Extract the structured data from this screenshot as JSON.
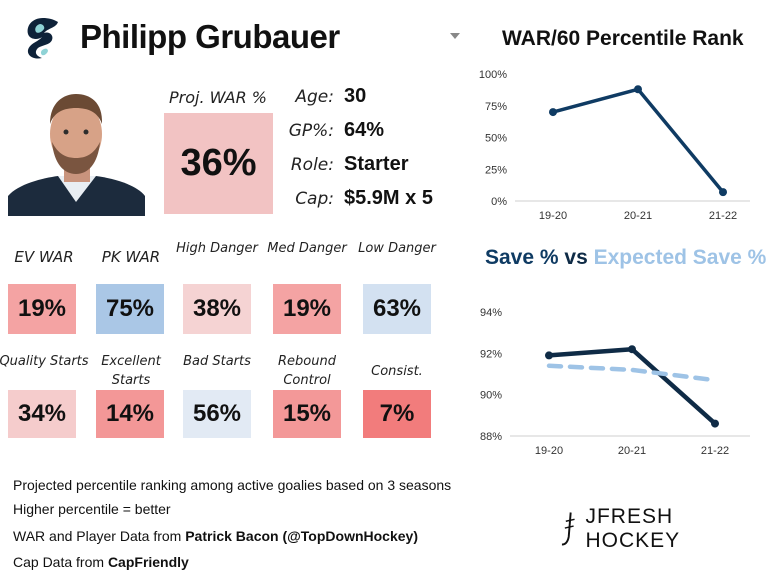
{
  "player": {
    "name": "Philipp Grubauer"
  },
  "proj_war": {
    "label": "Proj. WAR %",
    "value": "36%"
  },
  "info": [
    {
      "label": "Age:",
      "value": "30"
    },
    {
      "label": "GP%:",
      "value": "64%"
    },
    {
      "label": "Role:",
      "value": "Starter"
    },
    {
      "label": "Cap:",
      "value": "$5.9M x 5"
    }
  ],
  "stats_row1": [
    {
      "label": "EV WAR",
      "value": "19%",
      "color": "#f4a3a3"
    },
    {
      "label": "PK WAR",
      "value": "75%",
      "color": "#aac7e6"
    },
    {
      "label": "High Danger",
      "value": "38%",
      "color": "#f5d3d3"
    },
    {
      "label": "Med Danger",
      "value": "19%",
      "color": "#f4a3a3"
    },
    {
      "label": "Low Danger",
      "value": "63%",
      "color": "#d3e1f1"
    }
  ],
  "stats_row2": [
    {
      "label": "Quality Starts",
      "value": "34%",
      "color": "#f5cccc"
    },
    {
      "label": "Excellent Starts",
      "value": "14%",
      "color": "#f39797"
    },
    {
      "label": "Bad Starts",
      "value": "56%",
      "color": "#e2eaf4"
    },
    {
      "label": "Rebound Control",
      "value": "15%",
      "color": "#f39898"
    },
    {
      "label": "Consist.",
      "value": "7%",
      "color": "#f27c7c"
    }
  ],
  "footer": {
    "line1": "Projected percentile ranking among active goalies based on 3 seasons",
    "line2": "Higher percentile = better",
    "line3_prefix": "WAR and Player Data from ",
    "line3_bold": "Patrick Bacon (@TopDownHockey)",
    "line4_prefix": "Cap Data from ",
    "line4_bold": "CapFriendly"
  },
  "brand": "JFRESH HOCKEY",
  "colors": {
    "navy": "#0f3b63",
    "dark": "#0f2b46",
    "light": "#9ec3e6",
    "bar_red": "#f4a3a3"
  },
  "chart_data": [
    {
      "type": "line",
      "title": "WAR/60 Percentile Rank",
      "x": [
        "19-20",
        "20-21",
        "21-22"
      ],
      "series": [
        {
          "values": [
            70,
            88,
            7
          ]
        }
      ],
      "ylim": [
        0,
        100
      ],
      "yticks": [
        "0%",
        "25%",
        "50%",
        "75%",
        "100%"
      ],
      "grid": false
    },
    {
      "type": "line",
      "title_parts": [
        "Save %",
        " vs ",
        "Expected Save %"
      ],
      "x": [
        "19-20",
        "20-21",
        "21-22"
      ],
      "series": [
        {
          "name": "Save %",
          "values": [
            91.9,
            92.2,
            88.6
          ]
        },
        {
          "name": "Expected Save %",
          "values": [
            91.4,
            91.2,
            90.7
          ]
        }
      ],
      "ylim": [
        88,
        94
      ],
      "yticks": [
        "88%",
        "90%",
        "92%",
        "94%"
      ],
      "grid": false
    }
  ]
}
